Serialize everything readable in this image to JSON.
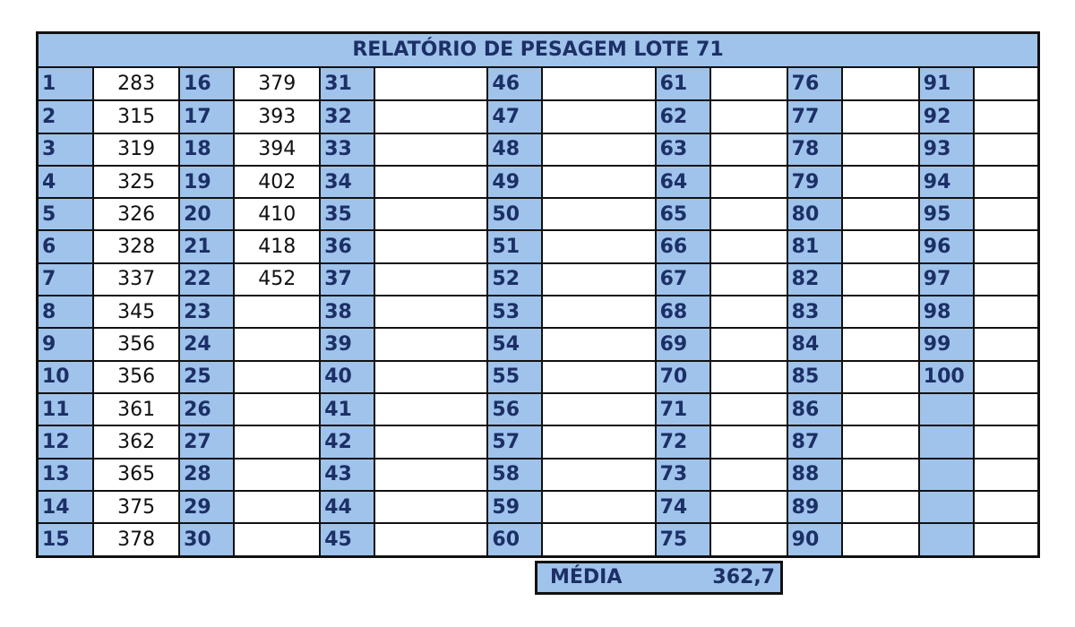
{
  "report": {
    "title": "RELATÓRIO DE PESAGEM LOTE 71",
    "columns": [
      {
        "numbers": [
          "1",
          "2",
          "3",
          "4",
          "5",
          "6",
          "7",
          "8",
          "9",
          "10",
          "11",
          "12",
          "13",
          "14",
          "15"
        ],
        "values": [
          "283",
          "315",
          "319",
          "325",
          "326",
          "328",
          "337",
          "345",
          "356",
          "356",
          "361",
          "362",
          "365",
          "375",
          "378"
        ]
      },
      {
        "numbers": [
          "16",
          "17",
          "18",
          "19",
          "20",
          "21",
          "22",
          "23",
          "24",
          "25",
          "26",
          "27",
          "28",
          "29",
          "30"
        ],
        "values": [
          "379",
          "393",
          "394",
          "402",
          "410",
          "418",
          "452",
          "",
          "",
          "",
          "",
          "",
          "",
          "",
          ""
        ]
      },
      {
        "numbers": [
          "31",
          "32",
          "33",
          "34",
          "35",
          "36",
          "37",
          "38",
          "39",
          "40",
          "41",
          "42",
          "43",
          "44",
          "45"
        ],
        "values": [
          "",
          "",
          "",
          "",
          "",
          "",
          "",
          "",
          "",
          "",
          "",
          "",
          "",
          "",
          ""
        ]
      },
      {
        "numbers": [
          "46",
          "47",
          "48",
          "49",
          "50",
          "51",
          "52",
          "53",
          "54",
          "55",
          "56",
          "57",
          "58",
          "59",
          "60"
        ],
        "values": [
          "",
          "",
          "",
          "",
          "",
          "",
          "",
          "",
          "",
          "",
          "",
          "",
          "",
          "",
          ""
        ]
      },
      {
        "numbers": [
          "61",
          "62",
          "63",
          "64",
          "65",
          "66",
          "67",
          "68",
          "69",
          "70",
          "71",
          "72",
          "73",
          "74",
          "75"
        ],
        "values": [
          "",
          "",
          "",
          "",
          "",
          "",
          "",
          "",
          "",
          "",
          "",
          "",
          "",
          "",
          ""
        ]
      },
      {
        "numbers": [
          "76",
          "77",
          "78",
          "79",
          "80",
          "81",
          "82",
          "83",
          "84",
          "85",
          "86",
          "87",
          "88",
          "89",
          "90"
        ],
        "values": [
          "",
          "",
          "",
          "",
          "",
          "",
          "",
          "",
          "",
          "",
          "",
          "",
          "",
          "",
          ""
        ]
      },
      {
        "numbers": [
          "91",
          "92",
          "93",
          "94",
          "95",
          "96",
          "97",
          "98",
          "99",
          "100",
          "",
          "",
          "",
          "",
          ""
        ],
        "values": [
          "",
          "",
          "",
          "",
          "",
          "",
          "",
          "",
          "",
          "",
          "",
          "",
          "",
          "",
          ""
        ]
      }
    ],
    "media_label": "MÉDIA",
    "media_value": "362,7"
  }
}
